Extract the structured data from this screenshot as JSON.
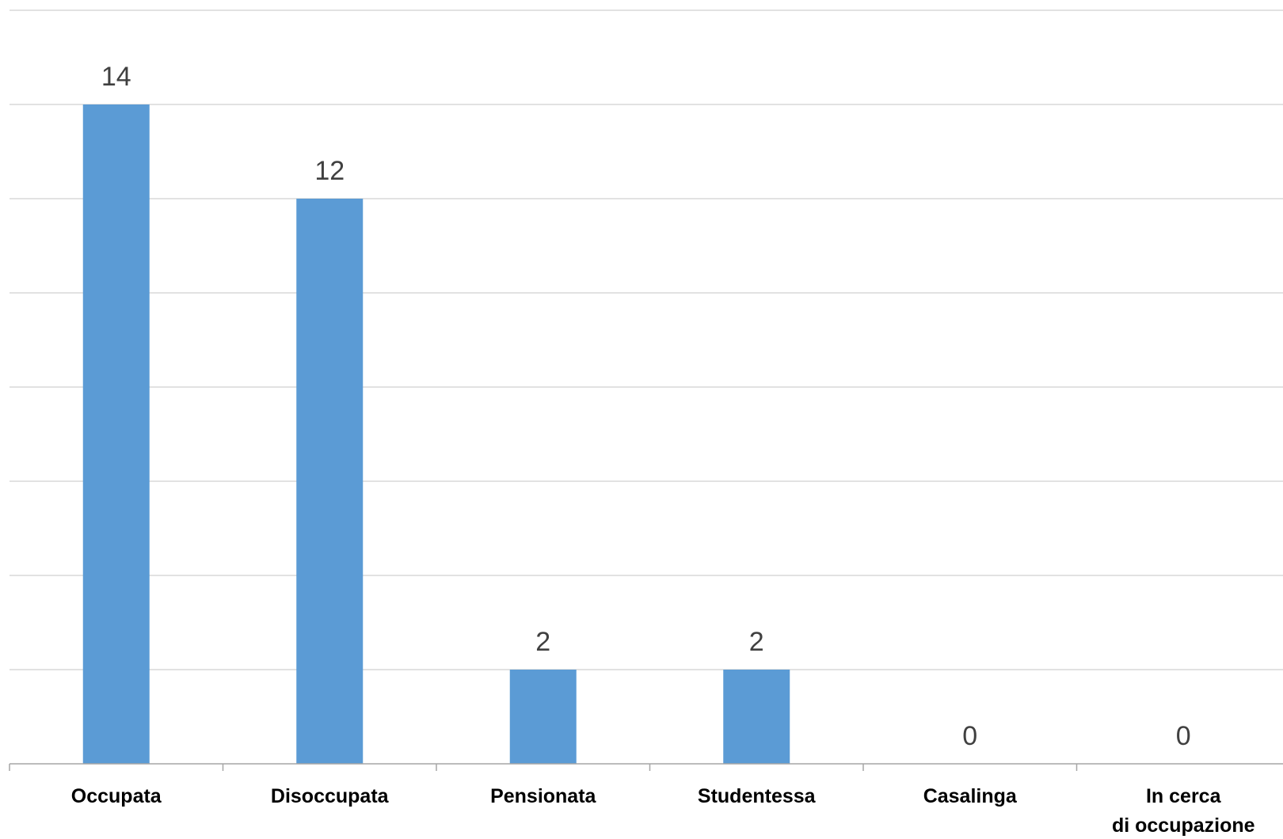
{
  "chart_data": {
    "type": "bar",
    "categories": [
      "Occupata",
      "Disoccupata",
      "Pensionata",
      "Studentessa",
      "Casalinga",
      "In cerca di occupazione"
    ],
    "values": [
      14,
      12,
      2,
      2,
      0,
      0
    ],
    "data_labels": [
      "14",
      "12",
      "2",
      "2",
      "0",
      "0"
    ],
    "title": "",
    "xlabel": "",
    "ylabel": "",
    "ylim": [
      0,
      16
    ],
    "ytick_step": 2,
    "grid": true,
    "legend": "none",
    "bar_color": "#5b9bd5"
  }
}
